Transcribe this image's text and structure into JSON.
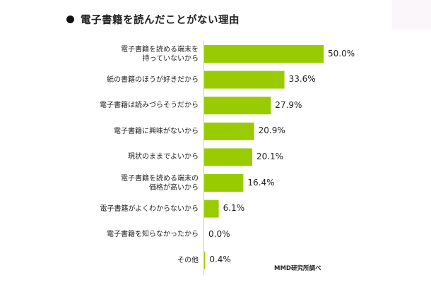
{
  "title": "電子書籍を読んだことがない理由",
  "source": "MMD研究所調べ",
  "chart_data": {
    "type": "bar",
    "orientation": "horizontal",
    "title": "電子書籍を読んだことがない理由",
    "categories": [
      "電子書籍を読める端末を\n持っていないから",
      "紙の書籍のほうが好きだから",
      "電子書籍は読みづらそうだから",
      "電子書籍に興味がないから",
      "現状のままでよいから",
      "電子書籍を読める端末の\n価格が高いから",
      "電子書籍がよくわからないから",
      "電子書籍を知らなかったから",
      "その他"
    ],
    "values": [
      50.0,
      33.6,
      27.9,
      20.9,
      20.1,
      16.4,
      6.1,
      0.0,
      0.4
    ],
    "value_labels": [
      "50.0%",
      "33.6%",
      "27.9%",
      "20.9%",
      "20.1%",
      "16.4%",
      "6.1%",
      "0.0%",
      "0.4%"
    ],
    "xlim": [
      0,
      60
    ],
    "color": "#99cc00",
    "grid": false,
    "legend": "none"
  }
}
